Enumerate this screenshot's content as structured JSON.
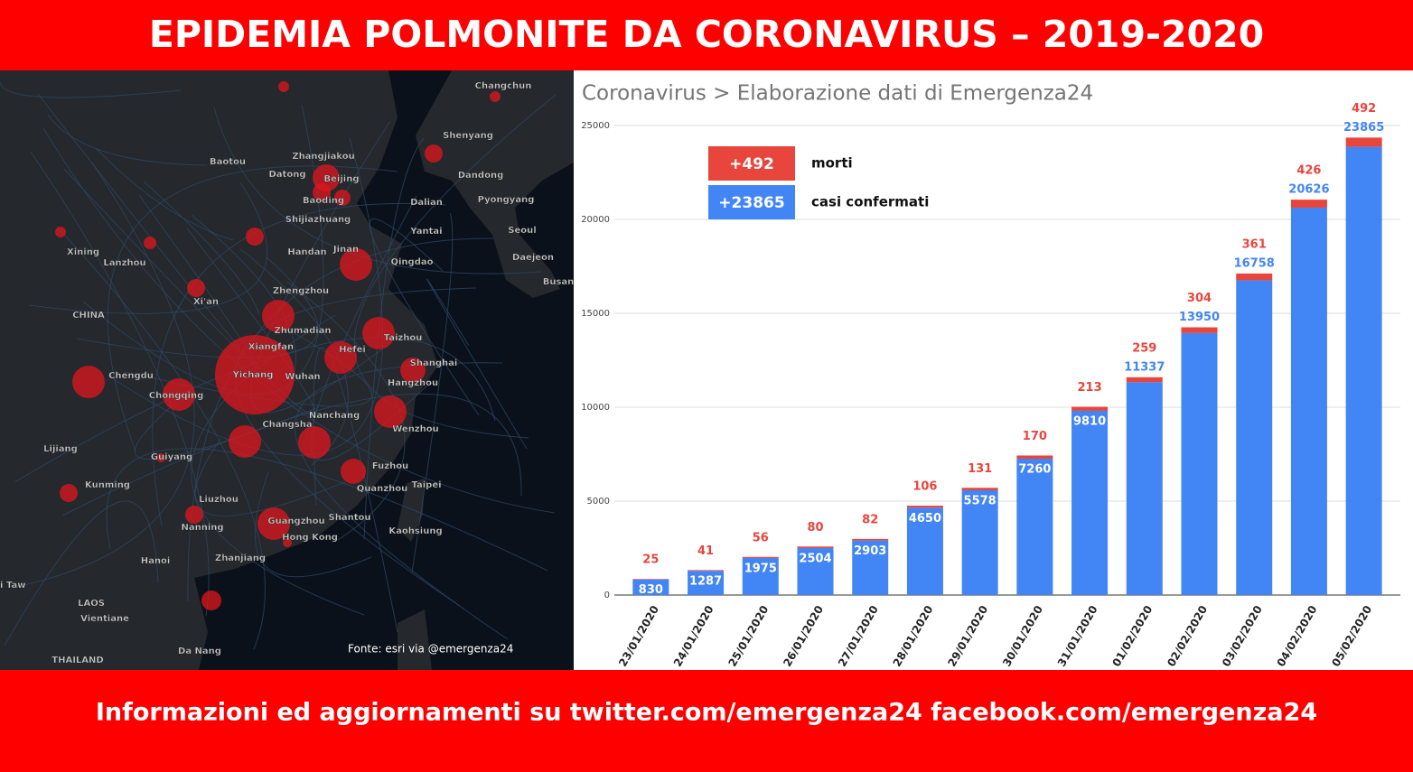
{
  "header": {
    "title": "EPIDEMIA POLMONITE DA CORONAVIRUS – 2019-2020"
  },
  "map": {
    "labels": [
      "Changchun",
      "Shenyang",
      "Baotou",
      "Datong",
      "Zhangjiakou",
      "Beijing",
      "Baoding",
      "Dalian",
      "Dandong",
      "Pyongyang",
      "Shijiazhuang",
      "Yantai",
      "Seoul",
      "Handan",
      "Jinan",
      "Qingdao",
      "Daejeon",
      "Busan",
      "Xining",
      "Lanzhou",
      "CHINA",
      "Xi'an",
      "Zhengzhou",
      "Zhumadian",
      "Xiangfan",
      "Hefei",
      "Taizhou",
      "Shanghai",
      "Chengdu",
      "Yichang",
      "Wuhan",
      "Hangzhou",
      "Chongqing",
      "Nanchang",
      "Changsha",
      "Wenzhou",
      "Guiyang",
      "Lijiang",
      "Fuzhou",
      "Taipei",
      "Kunming",
      "Quanzhou",
      "Liuzhou",
      "Shantou",
      "Guangzhou",
      "Nanning",
      "Kaohsiung",
      "Hong Kong",
      "Hanoi",
      "Zhanjiang",
      "LAOS",
      "Vientiane",
      "Da Nang",
      "THAILAND",
      "yi Taw"
    ],
    "source": "Fonte: esri via @emergenza24"
  },
  "chart_data": {
    "type": "stacked_bar",
    "title": "Coronavirus > Elaborazione dati di Emergenza24",
    "categories": [
      "23/01/2020",
      "24/01/2020",
      "25/01/2020",
      "26/01/2020",
      "27/01/2020",
      "28/01/2020",
      "29/01/2020",
      "30/01/2020",
      "31/01/2020",
      "01/02/2020",
      "02/02/2020",
      "03/02/2020",
      "04/02/2020",
      "05/02/2020"
    ],
    "series": [
      {
        "name": "casi confermati",
        "color": "#4285f4",
        "values": [
          830,
          1287,
          1975,
          2504,
          2903,
          4650,
          5578,
          7260,
          9810,
          11337,
          13950,
          16758,
          20626,
          23865
        ]
      },
      {
        "name": "morti",
        "color": "#e8453c",
        "values": [
          25,
          41,
          56,
          80,
          82,
          106,
          131,
          170,
          213,
          259,
          304,
          361,
          426,
          492
        ]
      }
    ],
    "legend_labels": [
      "+23865",
      "+492"
    ],
    "ylim": [
      0,
      25000
    ],
    "yticks": [
      0,
      5000,
      10000,
      15000,
      20000,
      25000
    ],
    "grid": true
  },
  "footer": {
    "text": "Informazioni ed aggiornamenti su twitter.com/emergenza24  facebook.com/emergenza24"
  }
}
